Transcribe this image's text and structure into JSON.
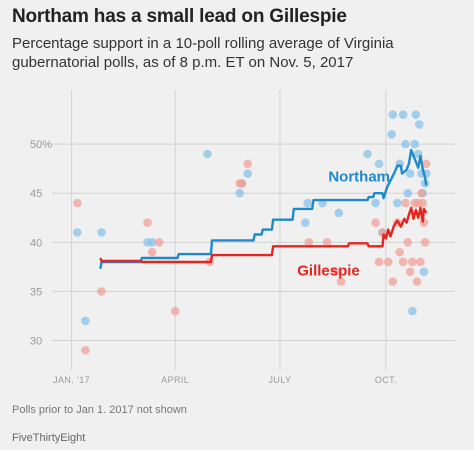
{
  "chart_data": {
    "type": "line",
    "title": "Northam has a small lead on Gillespie",
    "subtitle": "Percentage support in a 10-poll rolling average of Virginia gubernatorial polls, as of 8 p.m. ET on Nov. 5, 2017",
    "ylim": [
      27,
      55
    ],
    "yticks": [
      30,
      35,
      40,
      45,
      50
    ],
    "ytick_labels": [
      "30",
      "35",
      "40",
      "45",
      "50%"
    ],
    "xlim": [
      "2016-12-15",
      "2017-11-30"
    ],
    "xticks": [
      {
        "date": "2017-01-01",
        "label": "JAN. '17"
      },
      {
        "date": "2017-04-01",
        "label": "APRIL"
      },
      {
        "date": "2017-07-01",
        "label": "JULY"
      },
      {
        "date": "2017-10-01",
        "label": "OCT."
      }
    ],
    "grid": true,
    "series": [
      {
        "name": "Northam",
        "color": "#1f8ac9",
        "dot_color": "#88c3ea",
        "average": [
          [
            "2017-01-26",
            37.3
          ],
          [
            "2017-01-27",
            38.0
          ],
          [
            "2017-03-02",
            38.0
          ],
          [
            "2017-03-03",
            38.4
          ],
          [
            "2017-04-03",
            38.4
          ],
          [
            "2017-04-04",
            38.8
          ],
          [
            "2017-05-02",
            38.8
          ],
          [
            "2017-05-03",
            40.2
          ],
          [
            "2017-06-08",
            40.2
          ],
          [
            "2017-06-09",
            40.8
          ],
          [
            "2017-06-15",
            40.8
          ],
          [
            "2017-06-16",
            41.3
          ],
          [
            "2017-06-24",
            41.3
          ],
          [
            "2017-06-25",
            42.3
          ],
          [
            "2017-07-12",
            42.3
          ],
          [
            "2017-07-13",
            43.4
          ],
          [
            "2017-07-29",
            43.4
          ],
          [
            "2017-07-30",
            44.3
          ],
          [
            "2017-09-15",
            44.3
          ],
          [
            "2017-09-16",
            44.6
          ],
          [
            "2017-09-20",
            44.6
          ],
          [
            "2017-09-21",
            45.0
          ],
          [
            "2017-09-28",
            45.0
          ],
          [
            "2017-09-29",
            44.5
          ],
          [
            "2017-10-02",
            45.6
          ],
          [
            "2017-10-05",
            46.3
          ],
          [
            "2017-10-08",
            47.0
          ],
          [
            "2017-10-11",
            47.8
          ],
          [
            "2017-10-14",
            47.8
          ],
          [
            "2017-10-15",
            47.0
          ],
          [
            "2017-10-19",
            47.4
          ],
          [
            "2017-10-21",
            48.0
          ],
          [
            "2017-10-23",
            49.4
          ],
          [
            "2017-10-25",
            48.8
          ],
          [
            "2017-10-27",
            48.2
          ],
          [
            "2017-10-29",
            47.6
          ],
          [
            "2017-10-31",
            48.8
          ],
          [
            "2017-11-02",
            47.4
          ],
          [
            "2017-11-04",
            46.6
          ],
          [
            "2017-11-05",
            45.8
          ]
        ],
        "polls": [
          [
            "2017-01-06",
            41
          ],
          [
            "2017-01-13",
            32
          ],
          [
            "2017-01-27",
            41
          ],
          [
            "2017-03-08",
            40
          ],
          [
            "2017-03-12",
            40
          ],
          [
            "2017-04-29",
            49
          ],
          [
            "2017-05-27",
            45
          ],
          [
            "2017-05-29",
            46
          ],
          [
            "2017-06-03",
            47
          ],
          [
            "2017-07-23",
            42
          ],
          [
            "2017-07-25",
            44
          ],
          [
            "2017-08-07",
            44
          ],
          [
            "2017-08-21",
            43
          ],
          [
            "2017-09-15",
            49
          ],
          [
            "2017-09-22",
            44
          ],
          [
            "2017-09-25",
            48
          ],
          [
            "2017-09-28",
            41
          ],
          [
            "2017-10-06",
            51
          ],
          [
            "2017-10-07",
            53
          ],
          [
            "2017-10-11",
            44
          ],
          [
            "2017-10-13",
            48
          ],
          [
            "2017-10-16",
            53
          ],
          [
            "2017-10-18",
            50
          ],
          [
            "2017-10-20",
            45
          ],
          [
            "2017-10-22",
            47
          ],
          [
            "2017-10-24",
            33
          ],
          [
            "2017-10-26",
            50
          ],
          [
            "2017-10-27",
            53
          ],
          [
            "2017-10-29",
            49
          ],
          [
            "2017-10-30",
            52
          ],
          [
            "2017-11-01",
            47
          ],
          [
            "2017-11-02",
            45
          ],
          [
            "2017-11-03",
            37
          ],
          [
            "2017-11-04",
            46
          ],
          [
            "2017-11-05",
            47
          ]
        ],
        "label_date": "2017-08-12",
        "label_value": 46.2
      },
      {
        "name": "Gillespie",
        "color": "#e5251e",
        "dot_color": "#f0a19a",
        "average": [
          [
            "2017-01-26",
            38.4
          ],
          [
            "2017-01-27",
            38.1
          ],
          [
            "2017-03-02",
            38.1
          ],
          [
            "2017-03-03",
            38.0
          ],
          [
            "2017-05-02",
            38.0
          ],
          [
            "2017-05-03",
            38.7
          ],
          [
            "2017-06-24",
            38.7
          ],
          [
            "2017-06-25",
            39.6
          ],
          [
            "2017-08-29",
            39.6
          ],
          [
            "2017-08-30",
            39.9
          ],
          [
            "2017-09-15",
            39.9
          ],
          [
            "2017-09-16",
            39.6
          ],
          [
            "2017-09-28",
            39.6
          ],
          [
            "2017-09-29",
            40.8
          ],
          [
            "2017-10-01",
            40.4
          ],
          [
            "2017-10-03",
            41.3
          ],
          [
            "2017-10-05",
            40.6
          ],
          [
            "2017-10-08",
            41.7
          ],
          [
            "2017-10-11",
            42.2
          ],
          [
            "2017-10-14",
            41.6
          ],
          [
            "2017-10-17",
            42.4
          ],
          [
            "2017-10-19",
            42.0
          ],
          [
            "2017-10-21",
            42.8
          ],
          [
            "2017-10-23",
            43.5
          ],
          [
            "2017-10-25",
            42.4
          ],
          [
            "2017-10-27",
            43.3
          ],
          [
            "2017-10-29",
            42.5
          ],
          [
            "2017-10-31",
            43.5
          ],
          [
            "2017-11-02",
            42.1
          ],
          [
            "2017-11-03",
            43.4
          ],
          [
            "2017-11-05",
            43.0
          ]
        ],
        "polls": [
          [
            "2017-01-06",
            44
          ],
          [
            "2017-01-13",
            29
          ],
          [
            "2017-01-27",
            35
          ],
          [
            "2017-03-08",
            42
          ],
          [
            "2017-03-12",
            39
          ],
          [
            "2017-03-18",
            40
          ],
          [
            "2017-04-01",
            33
          ],
          [
            "2017-05-01",
            38
          ],
          [
            "2017-05-27",
            46
          ],
          [
            "2017-05-29",
            46
          ],
          [
            "2017-06-03",
            48
          ],
          [
            "2017-07-26",
            40
          ],
          [
            "2017-08-11",
            40
          ],
          [
            "2017-08-18",
            37
          ],
          [
            "2017-08-23",
            36
          ],
          [
            "2017-09-22",
            42
          ],
          [
            "2017-09-25",
            38
          ],
          [
            "2017-09-28",
            41
          ],
          [
            "2017-10-03",
            38
          ],
          [
            "2017-10-07",
            36
          ],
          [
            "2017-10-11",
            42
          ],
          [
            "2017-10-13",
            39
          ],
          [
            "2017-10-16",
            38
          ],
          [
            "2017-10-18",
            44
          ],
          [
            "2017-10-20",
            40
          ],
          [
            "2017-10-22",
            37
          ],
          [
            "2017-10-24",
            38
          ],
          [
            "2017-10-26",
            44
          ],
          [
            "2017-10-28",
            36
          ],
          [
            "2017-10-29",
            44
          ],
          [
            "2017-10-31",
            38
          ],
          [
            "2017-11-01",
            45
          ],
          [
            "2017-11-02",
            44
          ],
          [
            "2017-11-03",
            42
          ],
          [
            "2017-11-04",
            40
          ],
          [
            "2017-11-05",
            48
          ]
        ],
        "label_date": "2017-07-16",
        "label_value": 36.6
      }
    ],
    "footnote": "Polls prior to Jan 1. 2017 not shown",
    "source": "FiveThirtyEight"
  }
}
